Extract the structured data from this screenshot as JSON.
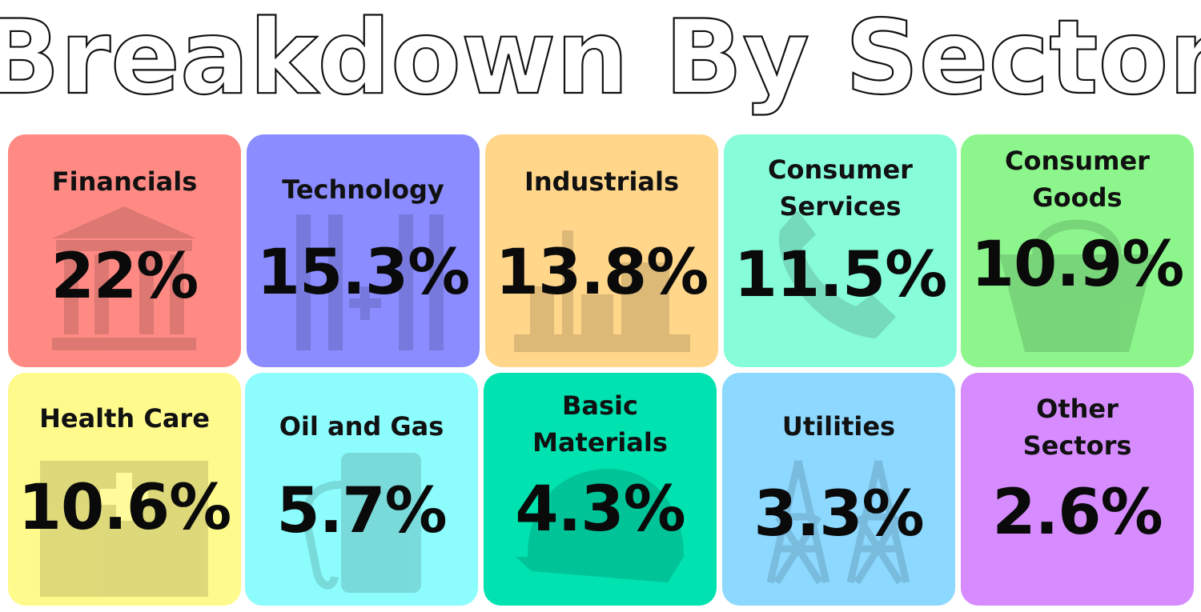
{
  "header": {
    "title": "Breakdown By Sector"
  },
  "sectors": [
    {
      "name": "Financials",
      "value": "22%",
      "color": "#ff8a84",
      "icon": "bank-icon"
    },
    {
      "name": "Technology",
      "value": "15.3%",
      "color": "#8a8cff",
      "icon": "circuit-icon"
    },
    {
      "name": "Industrials",
      "value": "13.8%",
      "color": "#ffd68a",
      "icon": "factory-icon"
    },
    {
      "name": "Consumer\nServices",
      "value": "11.5%",
      "color": "#86fcd8",
      "icon": "phone-icon"
    },
    {
      "name": "Consumer\nGoods",
      "value": "10.9%",
      "color": "#8cf68c",
      "icon": "basket-icon"
    },
    {
      "name": "Health Care",
      "value": "10.6%",
      "color": "#fffa8c",
      "icon": "hospital-icon"
    },
    {
      "name": "Oil and Gas",
      "value": "5.7%",
      "color": "#8cfcfc",
      "icon": "fuel-pump-icon"
    },
    {
      "name": "Basic\nMaterials",
      "value": "4.3%",
      "color": "#00e2b0",
      "icon": "hard-hat-icon"
    },
    {
      "name": "Utilities",
      "value": "3.3%",
      "color": "#8cd8ff",
      "icon": "power-tower-icon"
    },
    {
      "name": "Other\nSectors",
      "value": "2.6%",
      "color": "#d68cff",
      "icon": "generic-icon"
    }
  ]
}
